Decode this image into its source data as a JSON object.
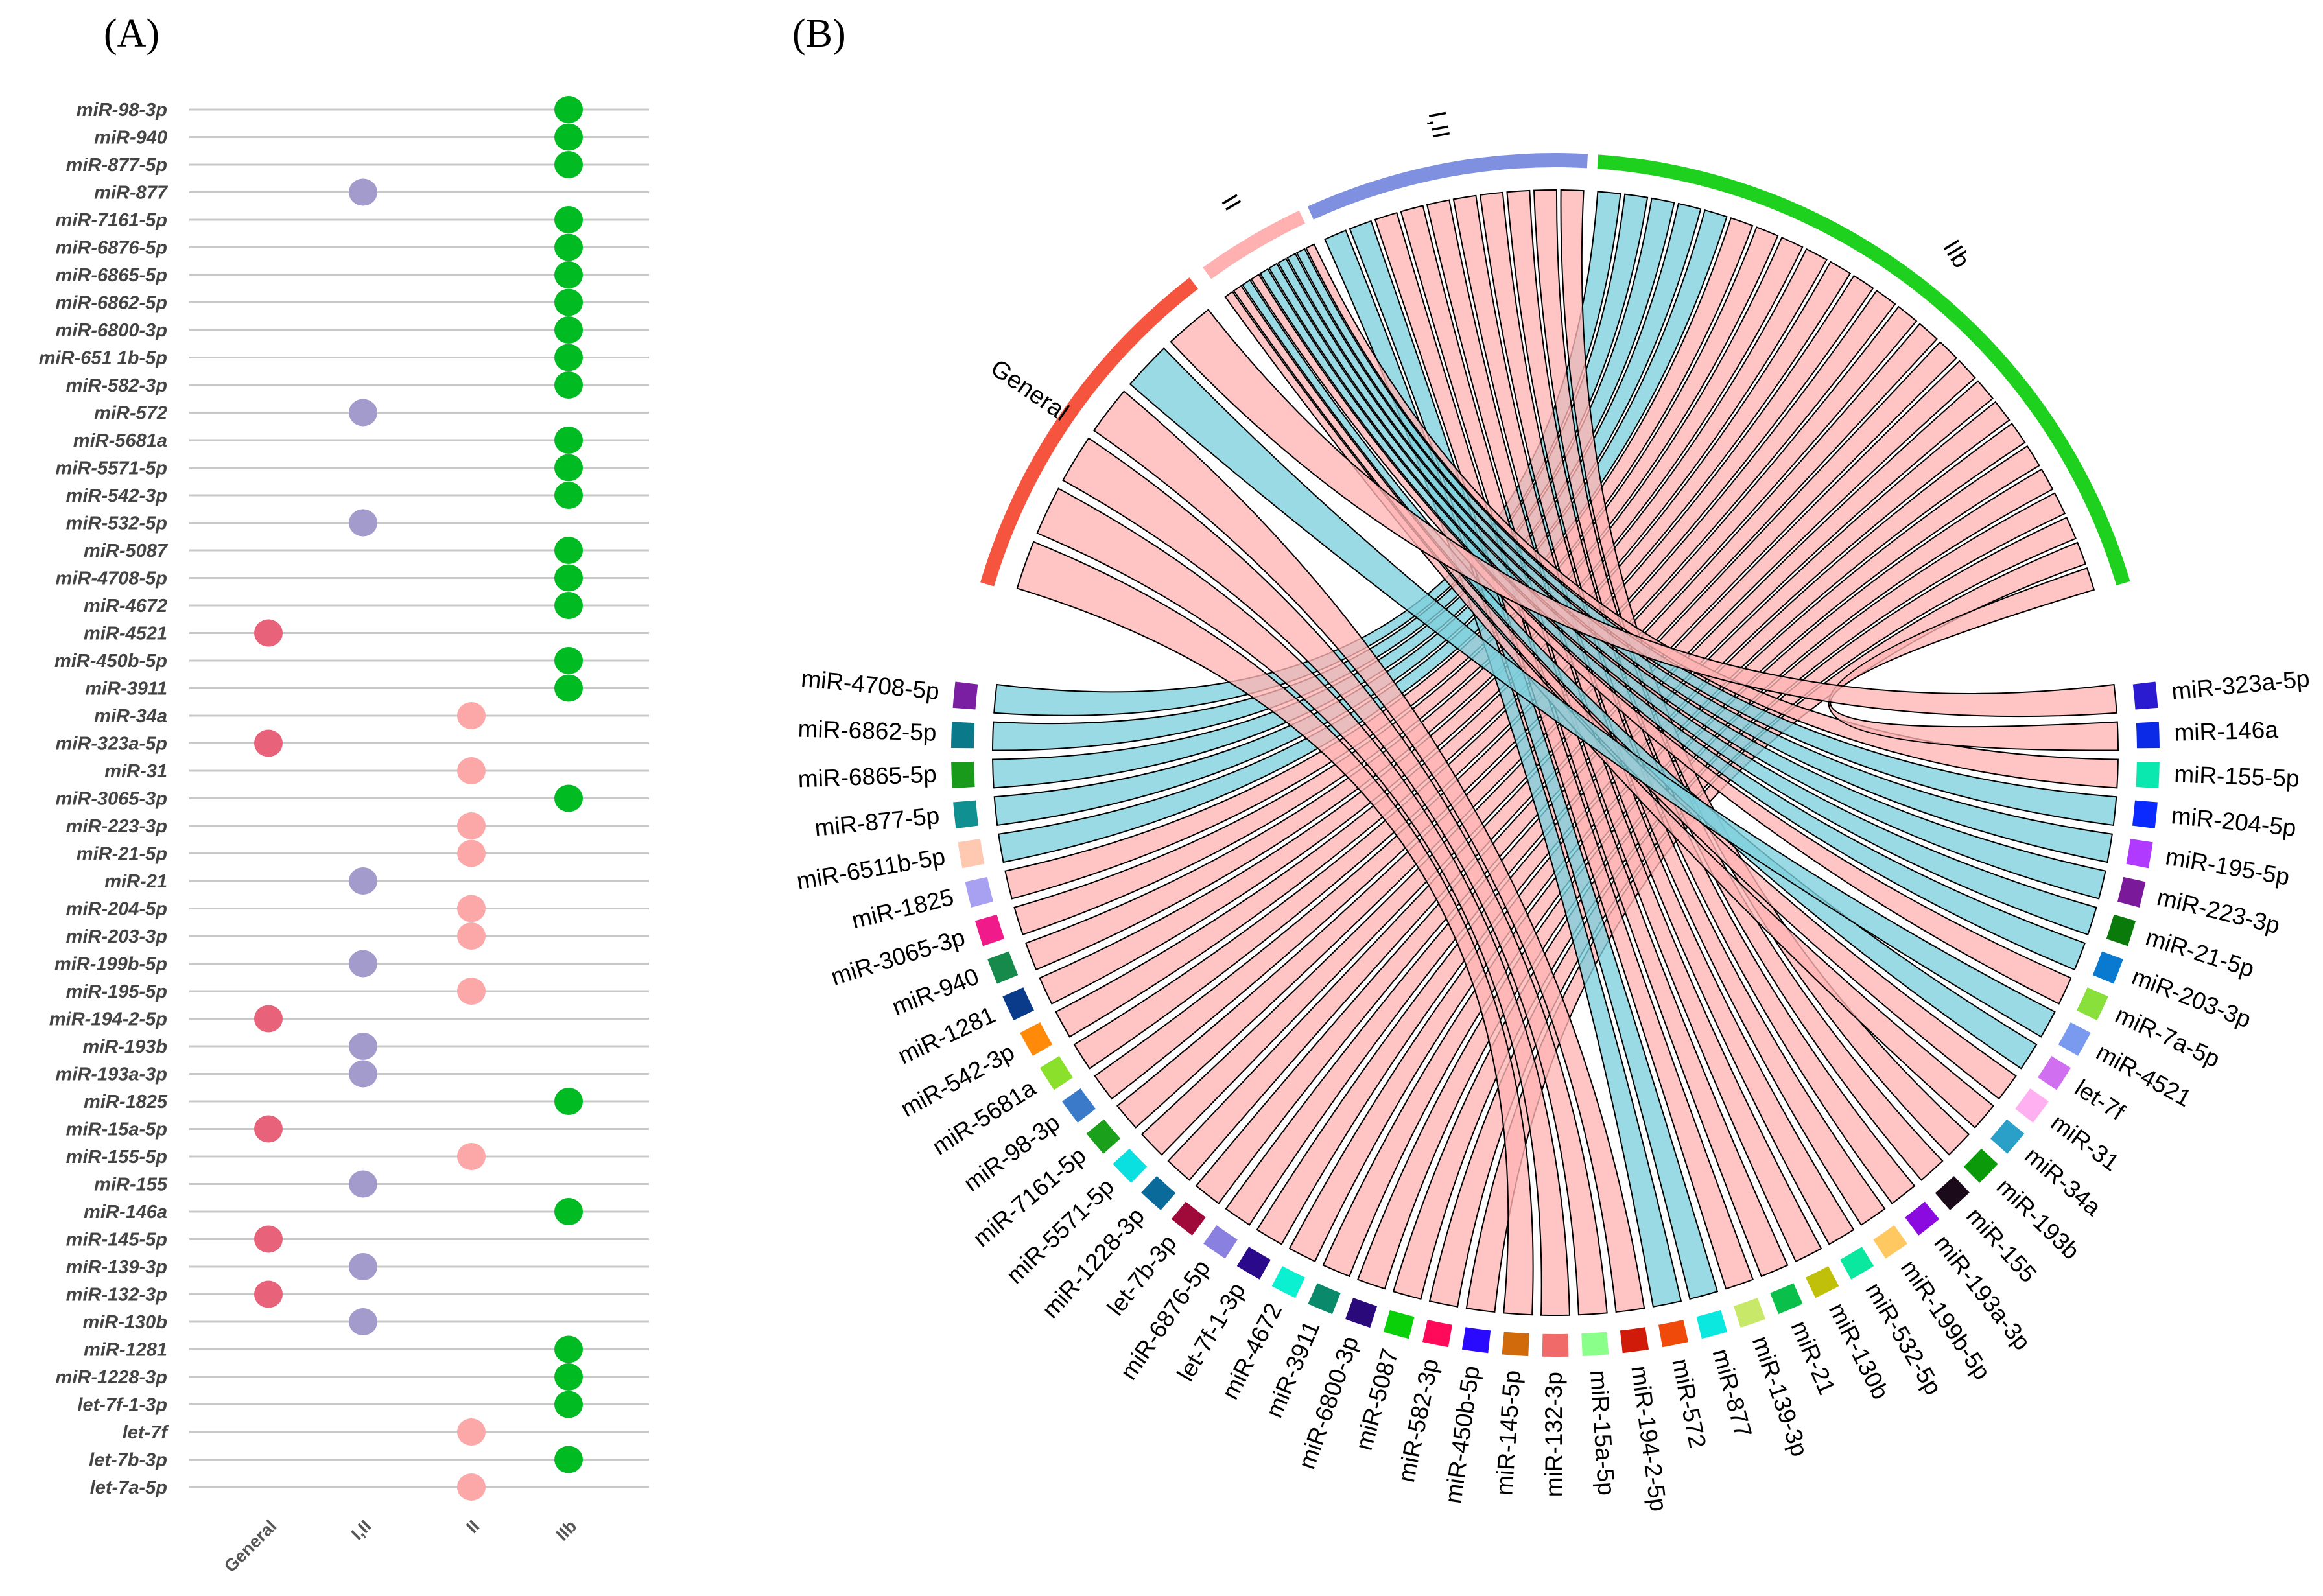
{
  "chart_data": [
    {
      "type": "scatter",
      "title": "(A)",
      "columns": [
        "General",
        "I,II",
        "II",
        "IIb"
      ],
      "group_colors": {
        "General": "#e8637a",
        "I,II": "#a39bcb",
        "II": "#fda8a8",
        "IIb": "#00bb22"
      },
      "rows": [
        {
          "label": "miR-98-3p",
          "group": "IIb"
        },
        {
          "label": "miR-940",
          "group": "IIb"
        },
        {
          "label": "miR-877-5p",
          "group": "IIb"
        },
        {
          "label": "miR-877",
          "group": "I,II"
        },
        {
          "label": "miR-7161-5p",
          "group": "IIb"
        },
        {
          "label": "miR-6876-5p",
          "group": "IIb"
        },
        {
          "label": "miR-6865-5p",
          "group": "IIb"
        },
        {
          "label": "miR-6862-5p",
          "group": "IIb"
        },
        {
          "label": "miR-6800-3p",
          "group": "IIb"
        },
        {
          "label": "miR-651 1b-5p",
          "group": "IIb"
        },
        {
          "label": "miR-582-3p",
          "group": "IIb"
        },
        {
          "label": "miR-572",
          "group": "I,II"
        },
        {
          "label": "miR-5681a",
          "group": "IIb"
        },
        {
          "label": "miR-5571-5p",
          "group": "IIb"
        },
        {
          "label": "miR-542-3p",
          "group": "IIb"
        },
        {
          "label": "miR-532-5p",
          "group": "I,II"
        },
        {
          "label": "miR-5087",
          "group": "IIb"
        },
        {
          "label": "miR-4708-5p",
          "group": "IIb"
        },
        {
          "label": "miR-4672",
          "group": "IIb"
        },
        {
          "label": "miR-4521",
          "group": "General"
        },
        {
          "label": "miR-450b-5p",
          "group": "IIb"
        },
        {
          "label": "miR-3911",
          "group": "IIb"
        },
        {
          "label": "miR-34a",
          "group": "II"
        },
        {
          "label": "miR-323a-5p",
          "group": "General"
        },
        {
          "label": "miR-31",
          "group": "II"
        },
        {
          "label": "miR-3065-3p",
          "group": "IIb"
        },
        {
          "label": "miR-223-3p",
          "group": "II"
        },
        {
          "label": "miR-21-5p",
          "group": "II"
        },
        {
          "label": "miR-21",
          "group": "I,II"
        },
        {
          "label": "miR-204-5p",
          "group": "II"
        },
        {
          "label": "miR-203-3p",
          "group": "II"
        },
        {
          "label": "miR-199b-5p",
          "group": "I,II"
        },
        {
          "label": "miR-195-5p",
          "group": "II"
        },
        {
          "label": "miR-194-2-5p",
          "group": "General"
        },
        {
          "label": "miR-193b",
          "group": "I,II"
        },
        {
          "label": "miR-193a-3p",
          "group": "I,II"
        },
        {
          "label": "miR-1825",
          "group": "IIb"
        },
        {
          "label": "miR-15a-5p",
          "group": "General"
        },
        {
          "label": "miR-155-5p",
          "group": "II"
        },
        {
          "label": "miR-155",
          "group": "I,II"
        },
        {
          "label": "miR-146a",
          "group": "IIb"
        },
        {
          "label": "miR-145-5p",
          "group": "General"
        },
        {
          "label": "miR-139-3p",
          "group": "I,II"
        },
        {
          "label": "miR-132-3p",
          "group": "General"
        },
        {
          "label": "miR-130b",
          "group": "I,II"
        },
        {
          "label": "miR-1281",
          "group": "IIb"
        },
        {
          "label": "miR-1228-3p",
          "group": "IIb"
        },
        {
          "label": "let-7f-1-3p",
          "group": "IIb"
        },
        {
          "label": "let-7f",
          "group": "II"
        },
        {
          "label": "let-7b-3p",
          "group": "IIb"
        },
        {
          "label": "let-7a-5p",
          "group": "II"
        }
      ]
    },
    {
      "type": "chord",
      "title": "(B)",
      "link_colors": {
        "pink": "#ffb3b3",
        "blue": "#7dcfdd"
      },
      "groups": [
        {
          "label": "General",
          "color": "#f5553f"
        },
        {
          "label": "II",
          "color": "#ffb0b0"
        },
        {
          "label": "I,II",
          "color": "#8090e0"
        },
        {
          "label": "IIb",
          "color": "#1ed11e"
        }
      ],
      "mirnas": [
        {
          "label": "miR-4708-5p",
          "color": "#7a1fa2",
          "group": "IIb",
          "link": "blue"
        },
        {
          "label": "miR-6862-5p",
          "color": "#0a7a8a",
          "group": "IIb",
          "link": "blue"
        },
        {
          "label": "miR-6865-5p",
          "color": "#1a9a1a",
          "group": "IIb",
          "link": "blue"
        },
        {
          "label": "miR-877-5p",
          "color": "#109090",
          "group": "IIb",
          "link": "blue"
        },
        {
          "label": "miR-6511b-5p",
          "color": "#ffc8b0",
          "group": "IIb",
          "link": "blue"
        },
        {
          "label": "miR-1825",
          "color": "#a8a0f0",
          "group": "IIb",
          "link": "pink"
        },
        {
          "label": "miR-3065-3p",
          "color": "#f01a8a",
          "group": "IIb",
          "link": "pink"
        },
        {
          "label": "miR-940",
          "color": "#158a4a",
          "group": "IIb",
          "link": "pink"
        },
        {
          "label": "miR-1281",
          "color": "#0a3a8a",
          "group": "IIb",
          "link": "pink"
        },
        {
          "label": "miR-542-3p",
          "color": "#ff8a0a",
          "group": "IIb",
          "link": "pink"
        },
        {
          "label": "miR-5681a",
          "color": "#8ae02a",
          "group": "IIb",
          "link": "pink"
        },
        {
          "label": "miR-98-3p",
          "color": "#3a7ac8",
          "group": "IIb",
          "link": "pink"
        },
        {
          "label": "miR-7161-5p",
          "color": "#1aa01a",
          "group": "IIb",
          "link": "pink"
        },
        {
          "label": "miR-5571-5p",
          "color": "#0ae0e0",
          "group": "IIb",
          "link": "pink"
        },
        {
          "label": "miR-1228-3p",
          "color": "#0a6a9a",
          "group": "IIb",
          "link": "pink"
        },
        {
          "label": "let-7b-3p",
          "color": "#a00a3a",
          "group": "IIb",
          "link": "pink"
        },
        {
          "label": "miR-6876-5p",
          "color": "#8a80e0",
          "group": "IIb",
          "link": "pink"
        },
        {
          "label": "let-7f-1-3p",
          "color": "#2a0a8a",
          "group": "IIb",
          "link": "pink"
        },
        {
          "label": "miR-4672",
          "color": "#0af0d0",
          "group": "IIb",
          "link": "pink"
        },
        {
          "label": "miR-3911",
          "color": "#0a8a6a",
          "group": "IIb",
          "link": "pink"
        },
        {
          "label": "miR-6800-3p",
          "color": "#2a0a7a",
          "group": "IIb",
          "link": "pink"
        },
        {
          "label": "miR-5087",
          "color": "#0ad00a",
          "group": "IIb",
          "link": "pink"
        },
        {
          "label": "miR-582-3p",
          "color": "#ff0a5a",
          "group": "IIb",
          "link": "pink"
        },
        {
          "label": "miR-450b-5p",
          "color": "#2a0aff",
          "group": "IIb",
          "link": "pink"
        },
        {
          "label": "miR-145-5p",
          "color": "#d06a0a",
          "group": "General",
          "link": "pink"
        },
        {
          "label": "miR-132-3p",
          "color": "#f06a6a",
          "group": "General",
          "link": "pink"
        },
        {
          "label": "miR-15a-5p",
          "color": "#8aff8a",
          "group": "General",
          "link": "pink"
        },
        {
          "label": "miR-194-2-5p",
          "color": "#d01a0a",
          "group": "General",
          "link": "pink"
        },
        {
          "label": "miR-572",
          "color": "#f04a0a",
          "group": "I,II",
          "link": "blue"
        },
        {
          "label": "miR-877",
          "color": "#0ae8e0",
          "group": "I,II",
          "link": "blue"
        },
        {
          "label": "miR-139-3p",
          "color": "#c8e86a",
          "group": "I,II",
          "link": "pink"
        },
        {
          "label": "miR-21",
          "color": "#0ac04a",
          "group": "I,II",
          "link": "pink"
        },
        {
          "label": "miR-130b",
          "color": "#c0c00a",
          "group": "I,II",
          "link": "pink"
        },
        {
          "label": "miR-532-5p",
          "color": "#0ae8a0",
          "group": "I,II",
          "link": "pink"
        },
        {
          "label": "miR-199b-5p",
          "color": "#ffc860",
          "group": "I,II",
          "link": "pink"
        },
        {
          "label": "miR-193a-3p",
          "color": "#8a0ae0",
          "group": "I,II",
          "link": "pink"
        },
        {
          "label": "miR-155",
          "color": "#1a0a1a",
          "group": "I,II",
          "link": "pink"
        },
        {
          "label": "miR-193b",
          "color": "#0a9a0a",
          "group": "I,II",
          "link": "pink"
        },
        {
          "label": "miR-34a",
          "color": "#2aa0c8",
          "group": "II",
          "link": "pink"
        },
        {
          "label": "miR-31",
          "color": "#ffb0f0",
          "group": "II",
          "link": "pink"
        },
        {
          "label": "let-7f",
          "color": "#d070f0",
          "group": "II",
          "link": "blue"
        },
        {
          "label": "miR-4521",
          "color": "#7a9af0",
          "group": "General",
          "link": "blue"
        },
        {
          "label": "miR-7a-5p",
          "color": "#8ae03a",
          "group": "II",
          "link": "pink"
        },
        {
          "label": "miR-203-3p",
          "color": "#0a7ad0",
          "group": "II",
          "link": "blue"
        },
        {
          "label": "miR-21-5p",
          "color": "#0a7a0a",
          "group": "II",
          "link": "blue"
        },
        {
          "label": "miR-223-3p",
          "color": "#7a1a9a",
          "group": "II",
          "link": "blue"
        },
        {
          "label": "miR-195-5p",
          "color": "#b03aff",
          "group": "II",
          "link": "blue"
        },
        {
          "label": "miR-204-5p",
          "color": "#0a2aff",
          "group": "II",
          "link": "blue"
        },
        {
          "label": "miR-155-5p",
          "color": "#0ae8b0",
          "group": "II",
          "link": "pink"
        },
        {
          "label": "miR-146a",
          "color": "#0a2ae8",
          "group": "IIb",
          "link": "pink"
        },
        {
          "label": "miR-323a-5p",
          "color": "#2a1ad0",
          "group": "General",
          "link": "pink"
        }
      ]
    }
  ]
}
